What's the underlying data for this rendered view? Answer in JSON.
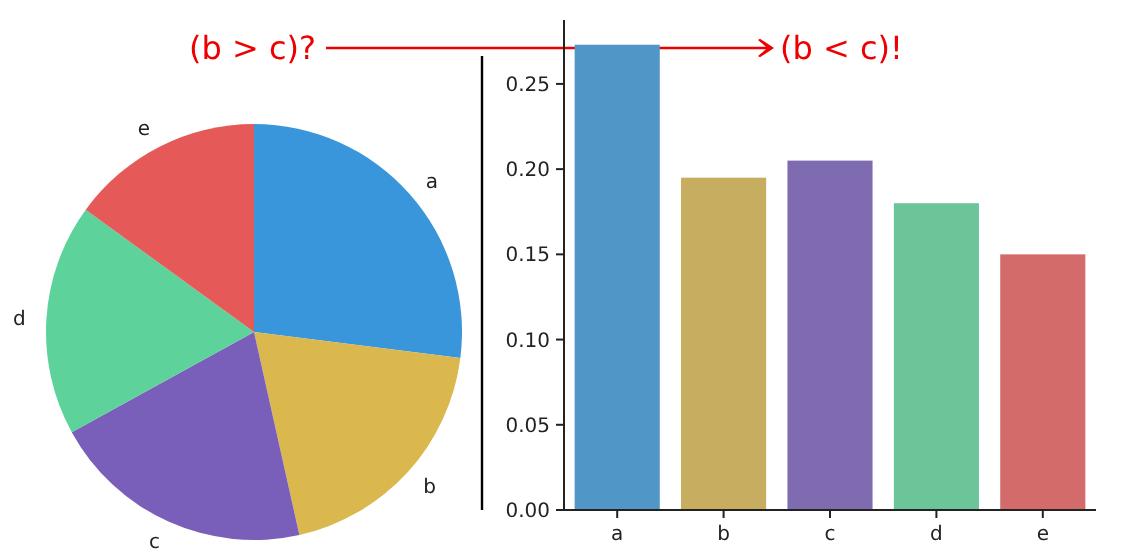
{
  "chart_data": [
    {
      "type": "pie",
      "categories": [
        "a",
        "b",
        "c",
        "d",
        "e"
      ],
      "values": [
        27,
        19.5,
        20.5,
        18,
        15
      ],
      "colors": [
        "#3a96db",
        "#dbb84d",
        "#7a5fba",
        "#5dd39b",
        "#e55959"
      ],
      "annotations": [
        "(b > c)?"
      ]
    },
    {
      "type": "bar",
      "categories": [
        "a",
        "b",
        "c",
        "d",
        "e"
      ],
      "values": [
        0.273,
        0.195,
        0.205,
        0.18,
        0.15
      ],
      "colors": [
        "#5096c6",
        "#c6ad5f",
        "#7f6bb0",
        "#6cc599",
        "#d46b6b"
      ],
      "ylim": [
        0,
        0.2875
      ],
      "yticks": [
        {
          "value": 0,
          "label": "0.00"
        },
        {
          "value": 0.05,
          "label": "0.05"
        },
        {
          "value": 0.1,
          "label": "0.10"
        },
        {
          "value": 0.15,
          "label": "0.15"
        },
        {
          "value": 0.2,
          "label": "0.20"
        },
        {
          "value": 0.25,
          "label": "0.25"
        }
      ],
      "grid": false,
      "annotations": [
        "(b < c)!"
      ]
    }
  ]
}
